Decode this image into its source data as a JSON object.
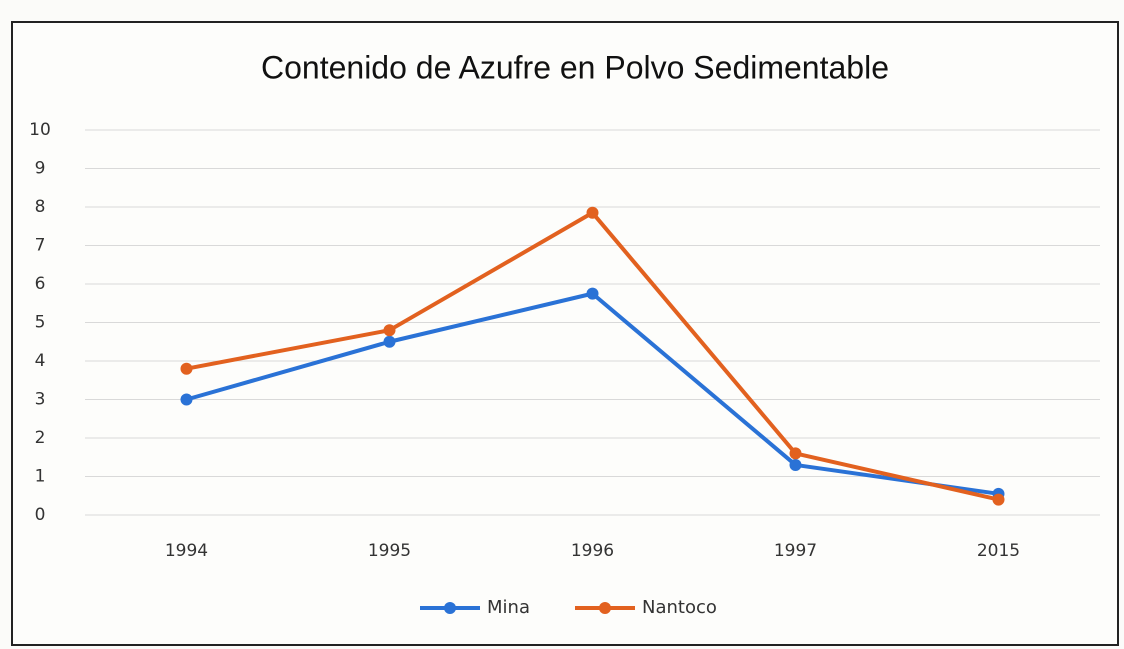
{
  "chart_data": {
    "type": "line",
    "title": "Contenido de Azufre en Polvo Sedimentable",
    "categories": [
      "1994",
      "1995",
      "1996",
      "1997",
      "2015"
    ],
    "series": [
      {
        "name": "Mina",
        "color": "#2a72d6",
        "values": [
          3.0,
          4.5,
          5.75,
          1.3,
          0.55
        ]
      },
      {
        "name": "Nantoco",
        "color": "#e2611f",
        "values": [
          3.8,
          4.8,
          7.85,
          1.6,
          0.4
        ]
      }
    ],
    "ylim": [
      0,
      10
    ],
    "yticks": [
      0,
      1,
      2,
      3,
      4,
      5,
      6,
      7,
      8,
      9,
      10
    ],
    "grid": true,
    "legend": "bottom"
  }
}
